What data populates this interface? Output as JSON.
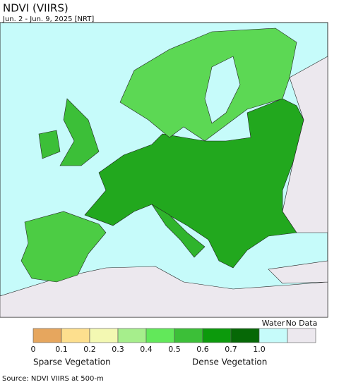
{
  "header": {
    "title": "NDVI (VIIRS)",
    "subtitle": "Jun. 2 - Jun. 9, 2025 [NRT]"
  },
  "legend": {
    "colors": [
      "#e6a65e",
      "#fddf8e",
      "#f3f8b2",
      "#a6ee8c",
      "#62e85a",
      "#3cbf38",
      "#0c9a0c",
      "#066806",
      "#c6fbfa",
      "#ece8ee"
    ],
    "tick_labels": [
      "0",
      "0.1",
      "0.2",
      "0.3",
      "0.4",
      "0.5",
      "0.6",
      "0.7",
      "1.0"
    ],
    "water_label": "Water",
    "no_data_label": "No Data",
    "low_label": "Sparse Vegetation",
    "high_label": "Dense Vegetation"
  },
  "footer": {
    "source": "Source: NDVI VIIRS at 500-m"
  }
}
